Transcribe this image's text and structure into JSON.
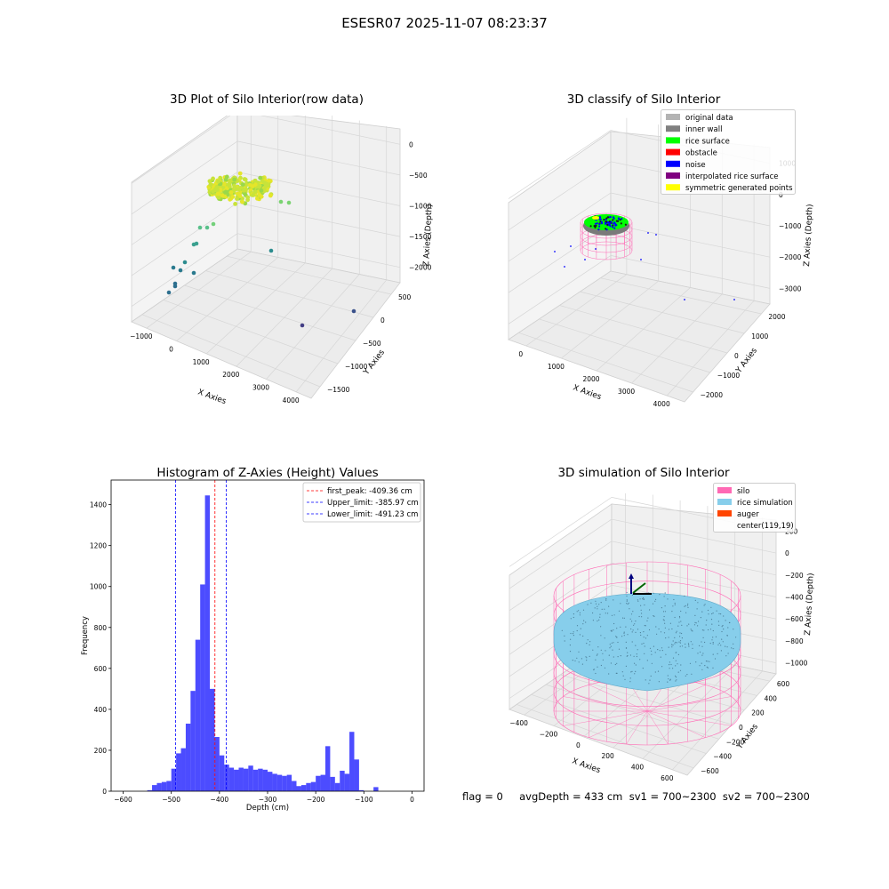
{
  "figure": {
    "suptitle": "ESESR07 2025-11-07 08:23:37"
  },
  "chart_data": [
    {
      "type": "scatter",
      "title": "3D Plot of Silo Interior(row data)",
      "xlabel": "X Axies",
      "ylabel": "Y Axies",
      "zlabel": "Z Axies (Depth)",
      "x_ticks": [
        "−1000",
        "0",
        "1000",
        "2000",
        "3000",
        "4000"
      ],
      "y_ticks": [
        "−1500",
        "−1000",
        "−500",
        "0",
        "500"
      ],
      "z_ticks": [
        "0",
        "−500",
        "−1000",
        "−1500",
        "−2000"
      ],
      "grid": true
    },
    {
      "type": "scatter",
      "title": "3D classify of Silo Interior",
      "xlabel": "X Axies",
      "ylabel": "Y Axies",
      "zlabel": "Z Axies (Depth)",
      "x_ticks": [
        "0",
        "1000",
        "2000",
        "3000",
        "4000"
      ],
      "y_ticks": [
        "−2000",
        "−1000",
        "0",
        "1000",
        "2000"
      ],
      "z_ticks": [
        "1000",
        "0",
        "−1000",
        "−2000",
        "−3000"
      ],
      "legend_position": "top-right",
      "legend": [
        {
          "label": "original data",
          "color": "#b3b3b3"
        },
        {
          "label": "inner wall",
          "color": "#808080"
        },
        {
          "label": "rice surface",
          "color": "#00ff00"
        },
        {
          "label": "obstacle",
          "color": "#ff0000"
        },
        {
          "label": "noise",
          "color": "#0000ff"
        },
        {
          "label": "interpolated rice surface",
          "color": "#800080"
        },
        {
          "label": "symmetric generated points",
          "color": "#ffff00"
        }
      ],
      "grid": true
    },
    {
      "type": "bar",
      "title": "Histogram of Z-Axies (Height) Values",
      "xlabel": "Depth (cm)",
      "ylabel": "Frequency",
      "xlim": [
        -625,
        25
      ],
      "ylim": [
        0,
        1520
      ],
      "x_ticks": [
        "−600",
        "−500",
        "−400",
        "−300",
        "−200",
        "−100",
        "0"
      ],
      "y_ticks": [
        "0",
        "200",
        "400",
        "600",
        "800",
        "1000",
        "1200",
        "1400"
      ],
      "bin_start": -600,
      "bin_width": 10,
      "values": [
        0,
        0,
        0,
        0,
        0,
        5,
        30,
        40,
        45,
        50,
        110,
        185,
        210,
        330,
        490,
        740,
        1010,
        1445,
        500,
        265,
        175,
        130,
        115,
        105,
        115,
        110,
        125,
        105,
        110,
        105,
        95,
        85,
        80,
        75,
        80,
        50,
        25,
        30,
        40,
        45,
        75,
        80,
        220,
        70,
        40,
        100,
        85,
        290,
        155,
        5,
        0,
        0,
        20,
        0
      ],
      "bar_color": "#0000ff",
      "lines": [
        {
          "label": "first_peak: -409.36 cm",
          "x": -409.36,
          "color": "#ff0000"
        },
        {
          "label": "Upper_limit: -385.97 cm",
          "x": -385.97,
          "color": "#0000ff"
        },
        {
          "label": "Lower_limit: -491.23 cm",
          "x": -491.23,
          "color": "#0000ff"
        }
      ],
      "legend_position": "top-right",
      "grid": false
    },
    {
      "type": "scatter",
      "title": "3D simulation of Silo Interior",
      "xlabel": "X Axies",
      "ylabel": "Y Axies",
      "zlabel": "Z Axies (Depth)",
      "x_ticks": [
        "−400",
        "−200",
        "0",
        "200",
        "400",
        "600"
      ],
      "y_ticks": [
        "−600",
        "−400",
        "−200",
        "0",
        "200",
        "400",
        "600"
      ],
      "z_ticks": [
        "200",
        "0",
        "−200",
        "−400",
        "−600",
        "−800",
        "−1000"
      ],
      "legend_position": "top-right",
      "legend": [
        {
          "label": "silo",
          "color": "#ff69b4"
        },
        {
          "label": "rice simulation",
          "color": "#87ceeb"
        },
        {
          "label": "auger",
          "color": "#ff4500"
        },
        {
          "label": "center(119,19)",
          "color": ""
        }
      ],
      "grid": true
    }
  ],
  "status_line": "flag = 0     avgDepth = 433 cm  sv1 = 700~2300  sv2 = 700~2300"
}
